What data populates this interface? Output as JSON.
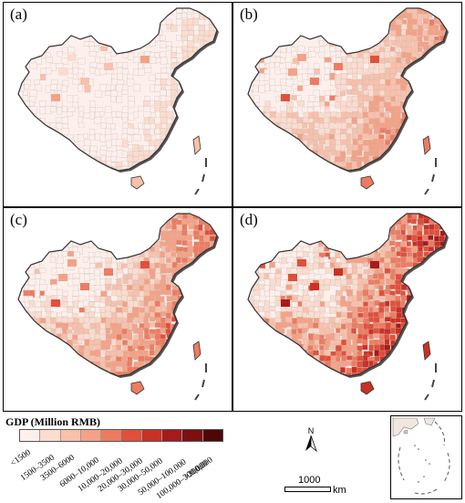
{
  "panels": [
    {
      "id": "a",
      "label": "(a)",
      "level": 0.15
    },
    {
      "id": "b",
      "label": "(b)",
      "level": 0.45
    },
    {
      "id": "c",
      "label": "(c)",
      "level": 0.55
    },
    {
      "id": "d",
      "label": "(d)",
      "level": 0.75
    }
  ],
  "legend": {
    "title": "GDP (Million RMB)",
    "classes": [
      {
        "label": "<1500",
        "color": "#fdf0ec"
      },
      {
        "label": "1500–3500",
        "color": "#fbdccf"
      },
      {
        "label": "3500–6000",
        "color": "#f7c1ac"
      },
      {
        "label": "6000–10,000",
        "color": "#f3a287"
      },
      {
        "label": "10,000–20,000",
        "color": "#ec7c61"
      },
      {
        "label": "20,000–30,000",
        "color": "#e0503d"
      },
      {
        "label": "30,000–50,000",
        "color": "#c93126"
      },
      {
        "label": "50,000–100,000",
        "color": "#a51b1b"
      },
      {
        "label": "100,000–300,000",
        "color": "#7c1010"
      },
      {
        "label": ">300,000",
        "color": "#4d0707"
      }
    ]
  },
  "north_label": "N",
  "scale": {
    "value": "1000",
    "unit": "km"
  }
}
